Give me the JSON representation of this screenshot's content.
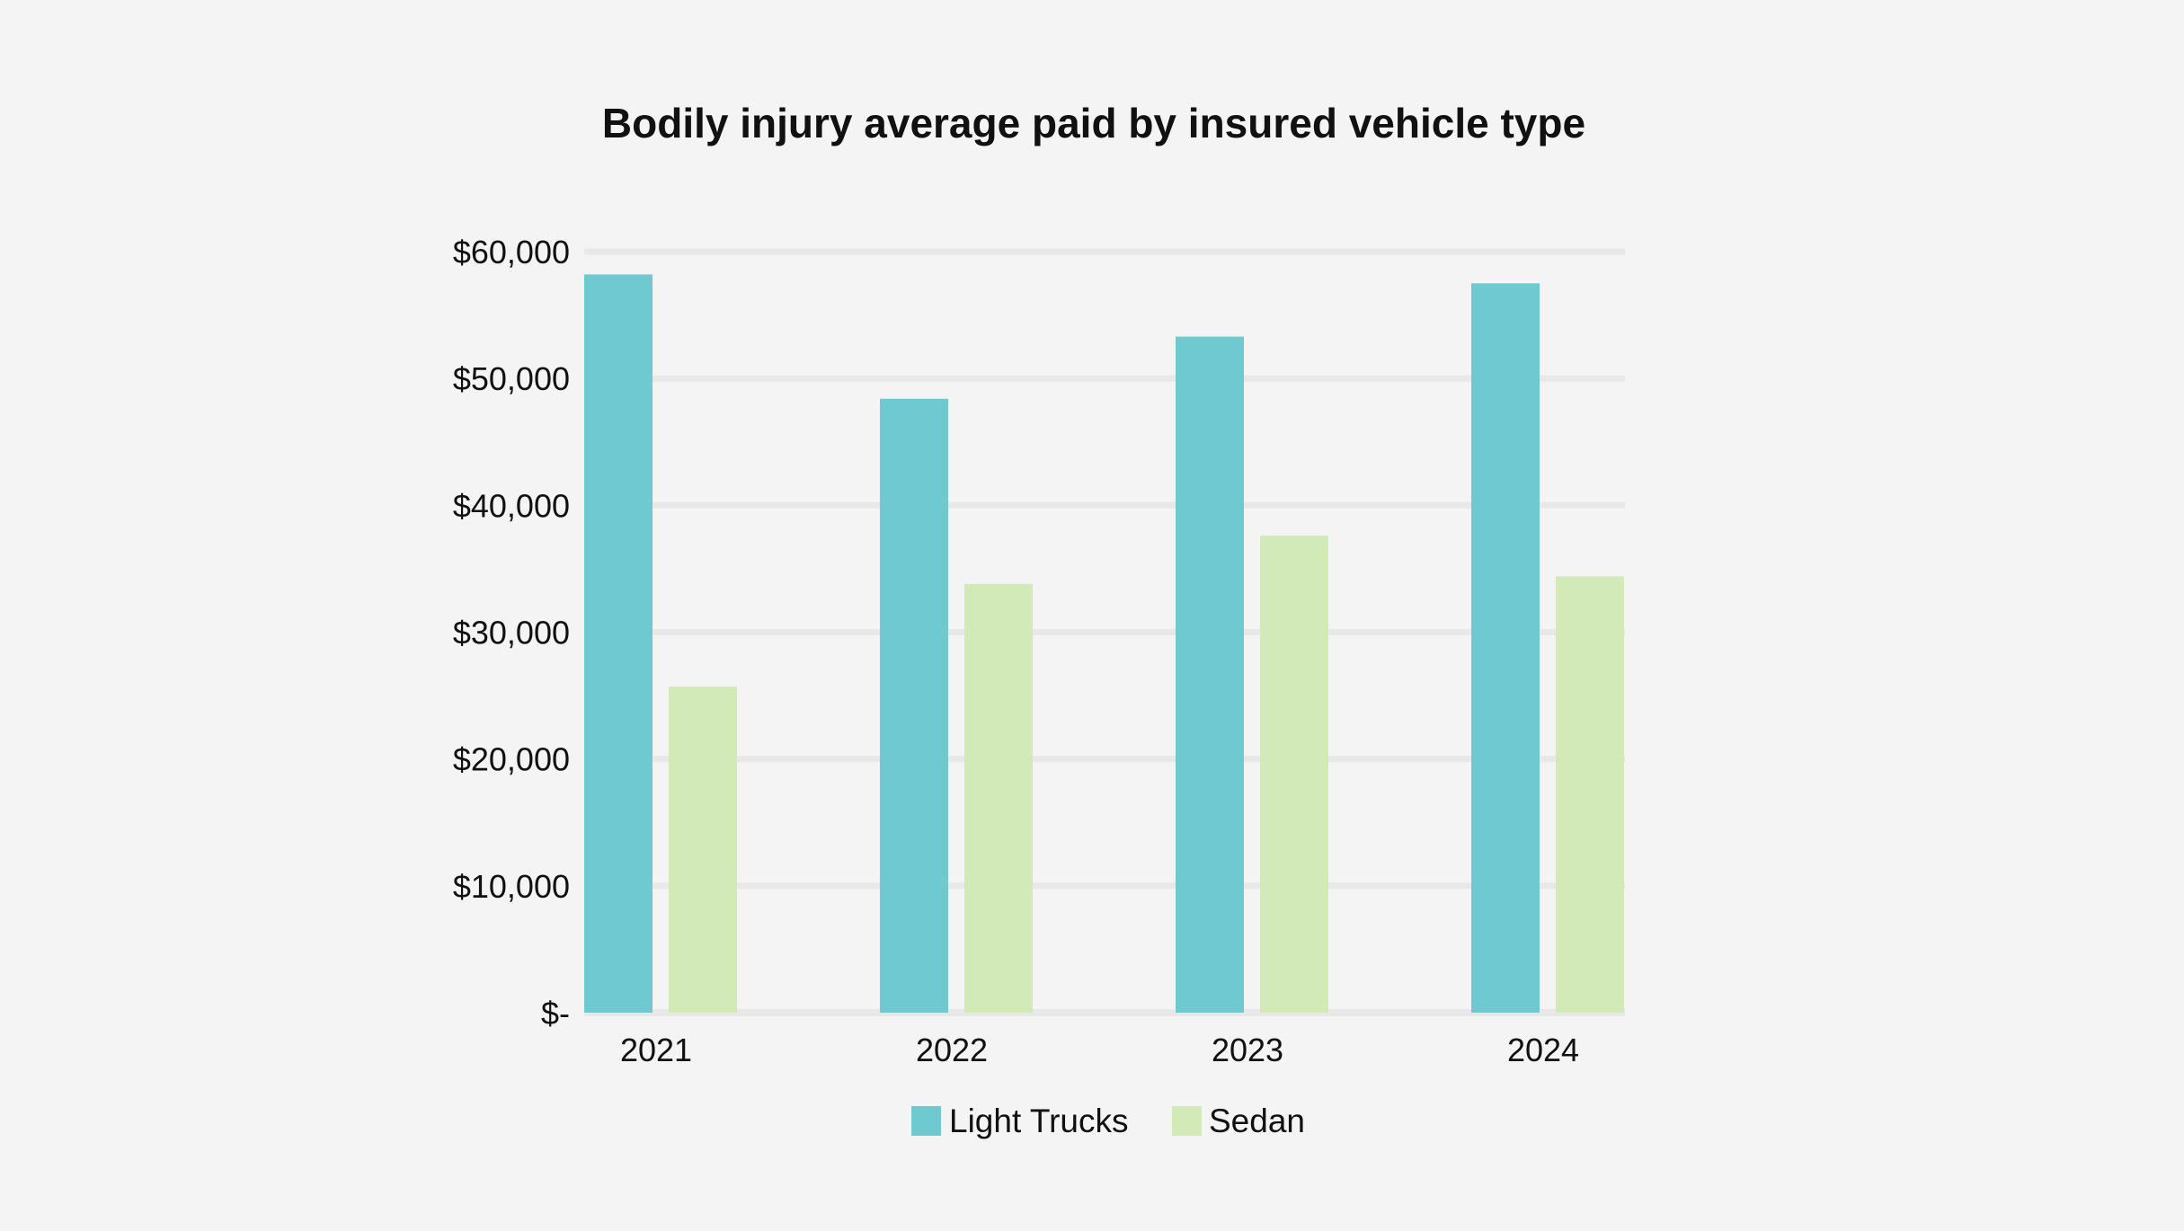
{
  "chart_data": {
    "type": "bar",
    "title": "Bodily injury average paid by insured vehicle type",
    "xlabel": "",
    "ylabel": "",
    "categories": [
      "2021",
      "2022",
      "2023",
      "2024"
    ],
    "series": [
      {
        "name": "Light Trucks",
        "color": "#6ecad0",
        "values": [
          58200,
          48400,
          53300,
          57500
        ]
      },
      {
        "name": "Sedan",
        "color": "#d2eab8",
        "values": [
          25700,
          33800,
          37600,
          34400
        ]
      }
    ],
    "ylim": [
      0,
      60000
    ],
    "yticks": [
      0,
      10000,
      20000,
      30000,
      40000,
      50000,
      60000
    ],
    "ytick_labels": [
      "$-",
      "$10,000",
      "$20,000",
      "$30,000",
      "$40,000",
      "$50,000",
      "$60,000"
    ],
    "grid": true,
    "legend_position": "bottom-center",
    "colors": {
      "background": "#f4f4f4",
      "gridline": "#e8e8e8",
      "text": "#111111"
    }
  }
}
